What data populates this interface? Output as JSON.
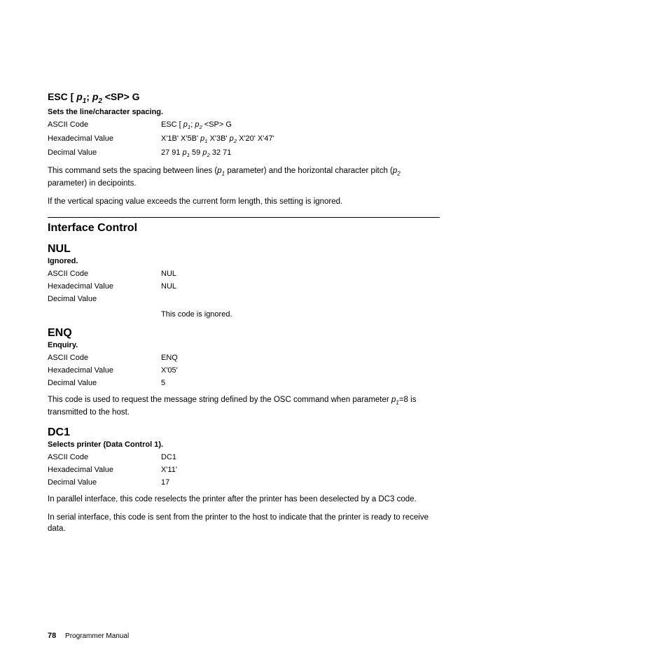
{
  "esc_cmd": {
    "title_prefix": "ESC [ ",
    "title_p1": "p",
    "title_sub1": "1",
    "title_sep": "; ",
    "title_p2": "p",
    "title_sub2": "2",
    "title_suffix": " <SP> G",
    "desc": "Sets the line/character spacing.",
    "ascii_label": "ASCII Code",
    "ascii_pre": "ESC [ ",
    "ascii_p1": "p",
    "ascii_s1": "1",
    "ascii_mid": "; ",
    "ascii_p2": "p",
    "ascii_s2": "2",
    "ascii_post": " <SP> G",
    "hex_label": "Hexadecimal Value",
    "hex_pre": "X'1B' X'5B' ",
    "hex_p1": "p",
    "hex_s1": "1",
    "hex_mid": " X'3B' ",
    "hex_p2": "p",
    "hex_s2": "2",
    "hex_post": " X'20' X'47'",
    "dec_label": "Decimal Value",
    "dec_pre": "27 91 ",
    "dec_p1": "p",
    "dec_s1": "1",
    "dec_mid": " 59 ",
    "dec_p2": "p",
    "dec_s2": "2",
    "dec_post": " 32 71",
    "para1_pre": "This command sets the spacing between lines (",
    "para1_p1": "p",
    "para1_s1": "1",
    "para1_mid": " parameter) and the horizontal character pitch (",
    "para1_p2": "p",
    "para1_s2": "2",
    "para1_post": " parameter) in decipoints.",
    "para2": "If the vertical spacing value exceeds the current form length, this setting is ignored."
  },
  "section_title": "Interface Control",
  "nul": {
    "name": "NUL",
    "desc": "Ignored.",
    "ascii_label": "ASCII Code",
    "ascii_value": "NUL",
    "hex_label": "Hexadecimal Value",
    "hex_value": "NUL",
    "dec_label": "Decimal Value",
    "dec_value": "",
    "note": "This code is ignored."
  },
  "enq": {
    "name": "ENQ",
    "desc": "Enquiry.",
    "ascii_label": "ASCII Code",
    "ascii_value": "ENQ",
    "hex_label": "Hexadecimal Value",
    "hex_value": "X'05'",
    "dec_label": "Decimal Value",
    "dec_value": "5",
    "para_pre": "This code is used to request the message string defined by the OSC command when parameter ",
    "para_p": "p",
    "para_s": "1",
    "para_post": "=8 is transmitted to the host."
  },
  "dc1": {
    "name": "DC1",
    "desc": "Selects printer (Data Control 1).",
    "ascii_label": "ASCII Code",
    "ascii_value": "DC1",
    "hex_label": "Hexadecimal Value",
    "hex_value": "X'11'",
    "dec_label": "Decimal Value",
    "dec_value": "17",
    "para1": "In parallel interface, this code reselects the printer after the printer has been deselected by a DC3 code.",
    "para2": "In serial interface, this code is sent from the printer to the host to indicate that the printer is ready to receive data."
  },
  "footer": {
    "page": "78",
    "title": "Programmer Manual"
  }
}
